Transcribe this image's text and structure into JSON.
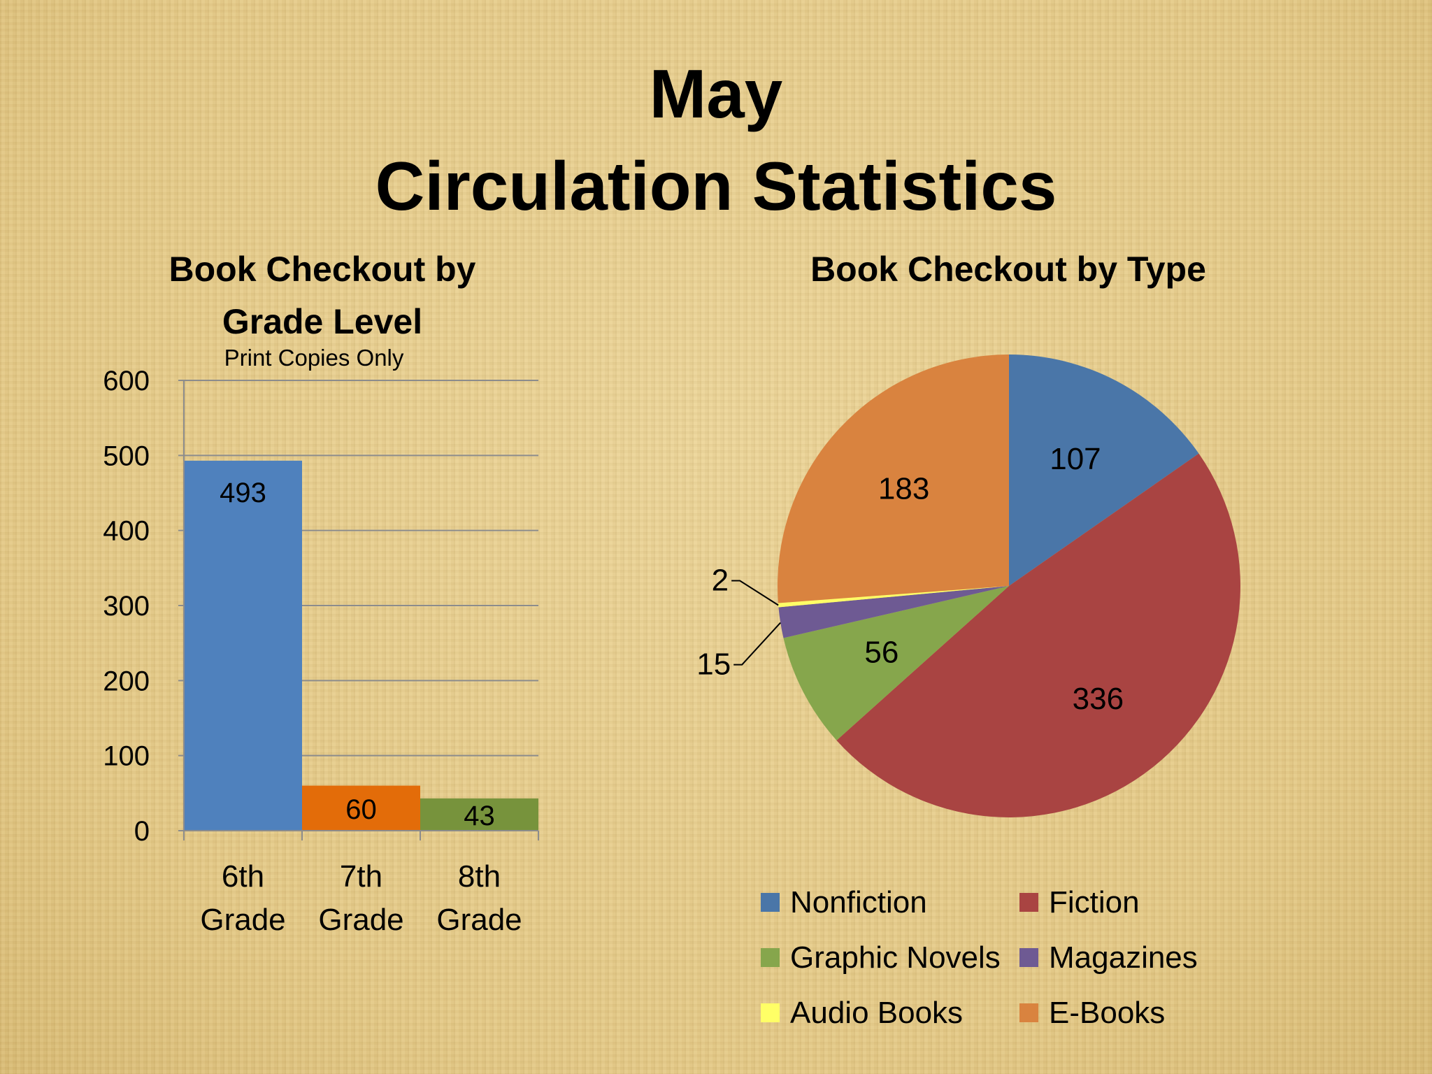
{
  "slide": {
    "title_line1": "May",
    "title_line2": "Circulation Statistics"
  },
  "chart_data": [
    {
      "type": "bar",
      "title_line1": "Book Checkout by",
      "title_line2": "Grade Level",
      "subtitle": "Print Copies Only",
      "categories": [
        [
          "6th",
          "Grade"
        ],
        [
          "7th",
          "Grade"
        ],
        [
          "8th",
          "Grade"
        ]
      ],
      "values": [
        493,
        60,
        43
      ],
      "colors": [
        "#4f81bd",
        "#e36c09",
        "#77933c"
      ],
      "ylim": [
        0,
        600
      ],
      "yticks": [
        0,
        100,
        200,
        300,
        400,
        500,
        600
      ],
      "grid": true
    },
    {
      "type": "pie",
      "title": "Book Checkout by Type",
      "slices": [
        {
          "label": "Nonfiction",
          "value": 107,
          "color": "#4a76a8"
        },
        {
          "label": "Fiction",
          "value": 336,
          "color": "#a94442"
        },
        {
          "label": "Graphic Novels",
          "value": 56,
          "color": "#86a64c"
        },
        {
          "label": "Magazines",
          "value": 15,
          "color": "#6e5a93"
        },
        {
          "label": "Audio Books",
          "value": 2,
          "color": "#ffff66"
        },
        {
          "label": "E-Books",
          "value": 183,
          "color": "#d9833f"
        }
      ],
      "legend_placement": "bottom"
    }
  ]
}
